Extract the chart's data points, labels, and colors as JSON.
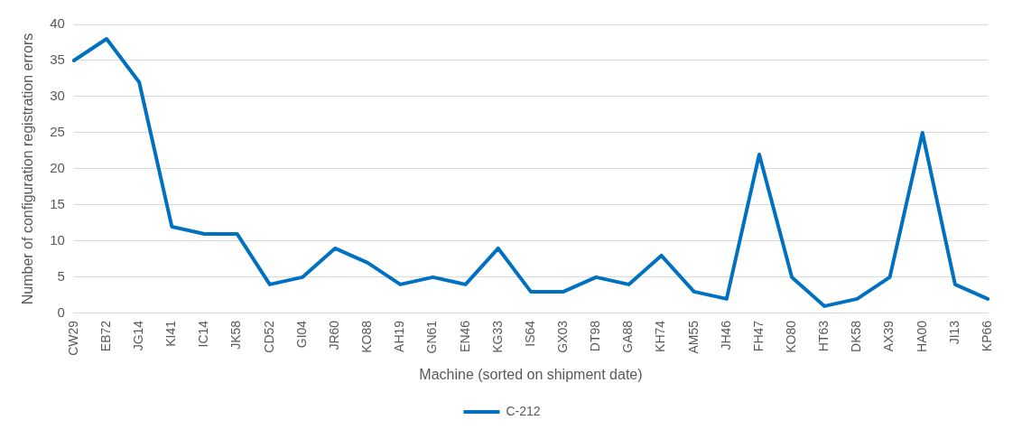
{
  "chart_data": {
    "type": "line",
    "xlabel": "Machine (sorted on shipment date)",
    "ylabel": "Number of configuration registration errors",
    "categories": [
      "CW29",
      "EB72",
      "JG14",
      "KI41",
      "IC14",
      "JK58",
      "CD52",
      "GI04",
      "JR60",
      "KO88",
      "AH19",
      "GN61",
      "EN46",
      "KG33",
      "IS64",
      "GX03",
      "DT98",
      "GA88",
      "KH74",
      "AM55",
      "JH46",
      "FH47",
      "KO80",
      "HT63",
      "DK58",
      "AX39",
      "HA00",
      "JI13",
      "KP66"
    ],
    "series": [
      {
        "name": "C-212",
        "color": "#0070c0",
        "values": [
          35,
          38,
          32,
          12,
          11,
          11,
          4,
          5,
          9,
          7,
          4,
          5,
          4,
          9,
          3,
          3,
          5,
          4,
          8,
          3,
          2,
          22,
          5,
          1,
          2,
          5,
          25,
          4,
          2
        ]
      }
    ],
    "ylim": [
      0,
      40
    ],
    "yticks": [
      0,
      5,
      10,
      15,
      20,
      25,
      30,
      35,
      40
    ],
    "grid": "y",
    "legend": "bottom",
    "marker": "none",
    "line_style": "solid"
  }
}
